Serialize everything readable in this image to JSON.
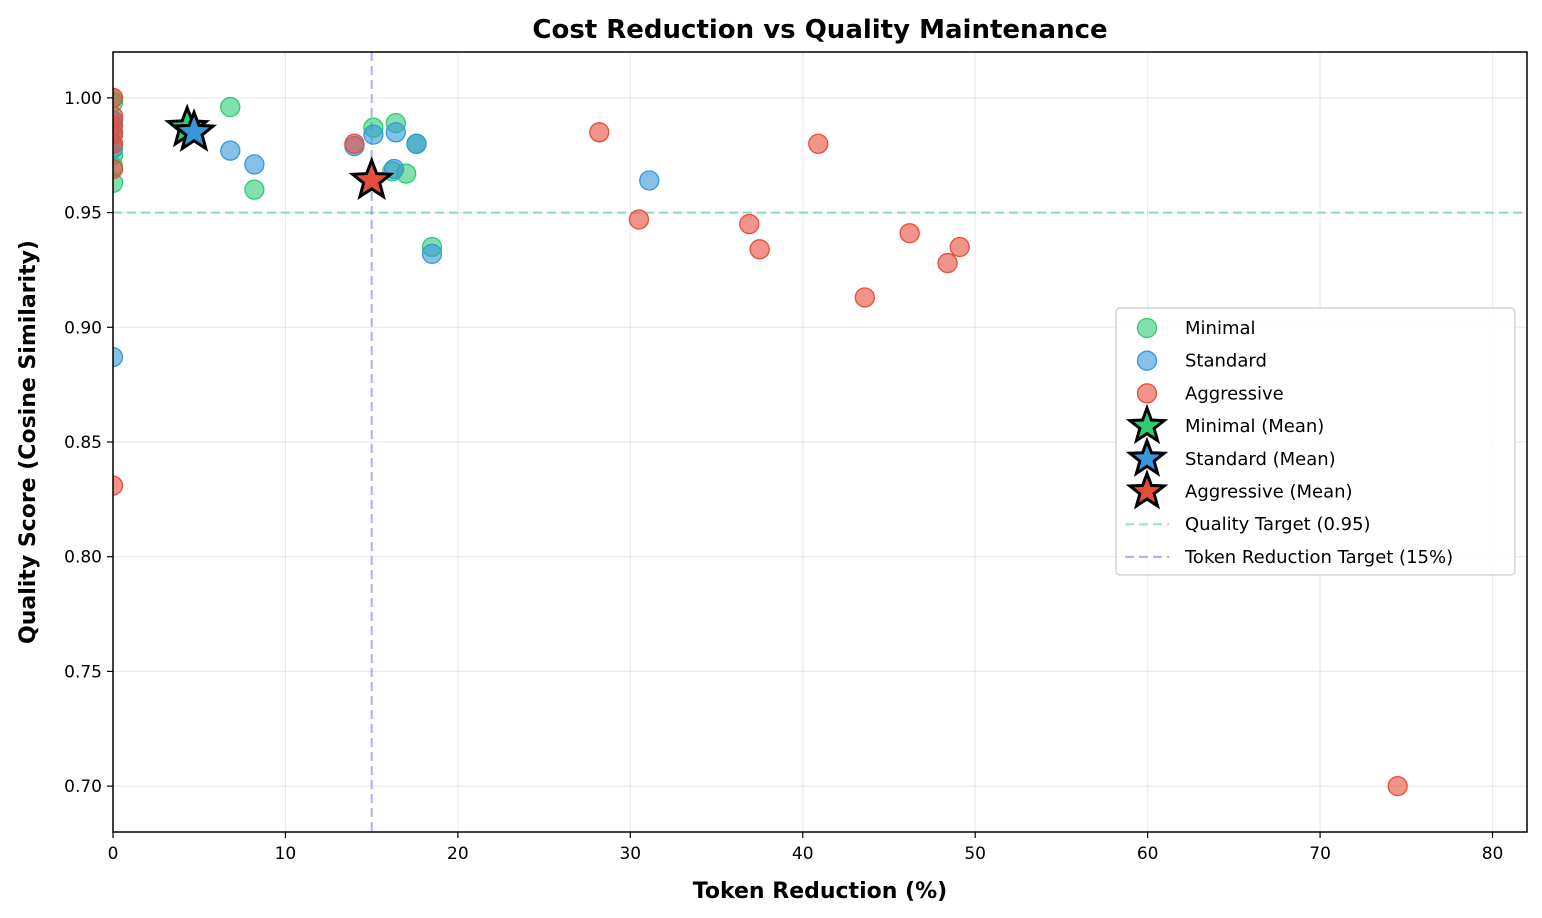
{
  "chart_data": {
    "type": "scatter",
    "title": "Cost Reduction vs Quality Maintenance",
    "xlabel": "Token Reduction (%)",
    "ylabel": "Quality Score (Cosine Similarity)",
    "xlim": [
      0,
      82
    ],
    "ylim": [
      0.68,
      1.02
    ],
    "xticks": [
      0,
      10,
      20,
      30,
      40,
      50,
      60,
      70,
      80
    ],
    "xtick_labels": [
      "0",
      "10",
      "20",
      "30",
      "40",
      "50",
      "60",
      "70",
      "80"
    ],
    "yticks": [
      0.7,
      0.75,
      0.8,
      0.85,
      0.9,
      0.95,
      1.0
    ],
    "ytick_labels": [
      "0.70",
      "0.75",
      "0.80",
      "0.85",
      "0.90",
      "0.95",
      "1.00"
    ],
    "grid": true,
    "legend_position": "center-right",
    "series": [
      {
        "name": "Minimal",
        "color": "#2ecc71",
        "marker": "circle",
        "points": [
          [
            0,
            1.0
          ],
          [
            0,
            0.998
          ],
          [
            0,
            0.99
          ],
          [
            0,
            0.985
          ],
          [
            0,
            0.98
          ],
          [
            0,
            0.975
          ],
          [
            0,
            0.97
          ],
          [
            0,
            0.963
          ],
          [
            6.8,
            0.996
          ],
          [
            8.2,
            0.96
          ],
          [
            15.1,
            0.987
          ],
          [
            16.4,
            0.989
          ],
          [
            17.0,
            0.967
          ],
          [
            16.2,
            0.968
          ],
          [
            17.6,
            0.98
          ],
          [
            18.5,
            0.935
          ],
          [
            4.4,
            0.988
          ]
        ]
      },
      {
        "name": "Standard",
        "color": "#3498db",
        "marker": "circle",
        "points": [
          [
            0,
            0.99
          ],
          [
            0,
            0.985
          ],
          [
            0,
            0.978
          ],
          [
            0,
            0.887
          ],
          [
            6.8,
            0.977
          ],
          [
            8.2,
            0.971
          ],
          [
            14.0,
            0.979
          ],
          [
            15.1,
            0.984
          ],
          [
            16.4,
            0.985
          ],
          [
            16.3,
            0.969
          ],
          [
            17.6,
            0.98
          ],
          [
            18.5,
            0.932
          ],
          [
            31.1,
            0.964
          ]
        ]
      },
      {
        "name": "Aggressive",
        "color": "#e74c3c",
        "marker": "circle",
        "points": [
          [
            0,
            1.0
          ],
          [
            0,
            0.992
          ],
          [
            0,
            0.988
          ],
          [
            0,
            0.984
          ],
          [
            0,
            0.98
          ],
          [
            0,
            0.969
          ],
          [
            0,
            0.831
          ],
          [
            14.0,
            0.98
          ],
          [
            28.2,
            0.985
          ],
          [
            30.5,
            0.947
          ],
          [
            36.9,
            0.945
          ],
          [
            37.5,
            0.934
          ],
          [
            40.9,
            0.98
          ],
          [
            43.6,
            0.913
          ],
          [
            46.2,
            0.941
          ],
          [
            48.4,
            0.928
          ],
          [
            49.1,
            0.935
          ],
          [
            74.5,
            0.7
          ]
        ]
      }
    ],
    "means": [
      {
        "name": "Minimal (Mean)",
        "color": "#2ecc71",
        "x": 4.3,
        "y": 0.987
      },
      {
        "name": "Standard (Mean)",
        "color": "#3498db",
        "x": 4.7,
        "y": 0.985
      },
      {
        "name": "Aggressive (Mean)",
        "color": "#e74c3c",
        "x": 15.0,
        "y": 0.964
      }
    ],
    "reference_lines": [
      {
        "name": "Quality Target (0.95)",
        "orientation": "horizontal",
        "value": 0.95,
        "color": "#2ecc71"
      },
      {
        "name": "Token Reduction Target (15%)",
        "orientation": "vertical",
        "value": 15,
        "color": "#5b5bff"
      }
    ]
  }
}
